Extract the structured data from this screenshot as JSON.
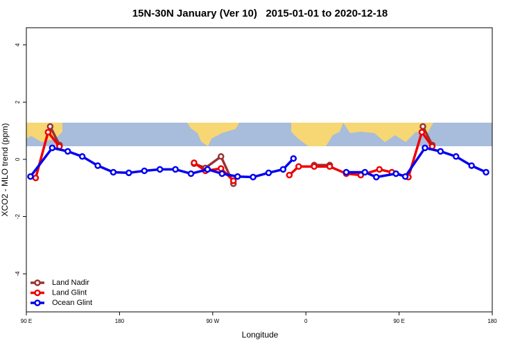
{
  "chart_data": {
    "type": "line",
    "title": "15N-30N January (Ver 10)   2015-01-01 to 2020-12-18",
    "x_label": "Longitude",
    "y_label": "XCO2 - MLO trend (ppm)",
    "xlim": [
      90,
      540
    ],
    "ylim": [
      -5.33,
      4.6
    ],
    "xticks": [
      {
        "value": 90,
        "label": "90 E"
      },
      {
        "value": 180,
        "label": "180"
      },
      {
        "value": 270,
        "label": "90 W"
      },
      {
        "value": 360,
        "label": "0"
      },
      {
        "value": 450,
        "label": "90 E"
      },
      {
        "value": 540,
        "label": "180"
      }
    ],
    "yticks": [
      -4,
      -2,
      0,
      2,
      4
    ],
    "legend": "bottom-left",
    "series": [
      {
        "name": "Land Nadir",
        "color": "#993333",
        "x": [
          113,
          122,
          null,
          252,
          263,
          278,
          290,
          null,
          368,
          383,
          null,
          473,
          482
        ],
        "values": [
          1.15,
          0.5,
          null,
          -0.15,
          -0.3,
          0.1,
          -0.85,
          null,
          -0.2,
          -0.2,
          null,
          1.15,
          0.5
        ]
      },
      {
        "name": "Land Glint",
        "color": "#ee0000",
        "x": [
          99,
          111,
          122,
          null,
          252,
          263,
          278,
          290,
          null,
          344,
          353,
          368,
          383,
          399,
          413,
          431,
          443,
          459,
          472,
          482
        ],
        "values": [
          -0.65,
          0.95,
          0.45,
          null,
          -0.12,
          -0.4,
          -0.32,
          -0.75,
          null,
          -0.55,
          -0.25,
          -0.25,
          -0.25,
          -0.5,
          -0.55,
          -0.35,
          -0.45,
          -0.62,
          0.95,
          0.45
        ]
      },
      {
        "name": "Ocean Glint",
        "color": "#0000ee",
        "x": [
          94,
          115,
          130,
          144,
          159,
          174,
          189,
          204,
          219,
          234,
          249,
          265,
          279,
          294,
          309,
          324,
          338,
          348,
          null,
          399,
          417,
          428,
          447,
          456,
          475,
          490,
          505,
          520,
          534
        ],
        "values": [
          -0.6,
          0.4,
          0.28,
          0.1,
          -0.22,
          -0.45,
          -0.47,
          -0.4,
          -0.35,
          -0.35,
          -0.5,
          -0.35,
          -0.5,
          -0.6,
          -0.62,
          -0.47,
          -0.35,
          0.03,
          null,
          -0.45,
          -0.45,
          -0.62,
          -0.5,
          -0.6,
          0.4,
          0.28,
          0.1,
          -0.22,
          -0.45
        ]
      }
    ]
  }
}
